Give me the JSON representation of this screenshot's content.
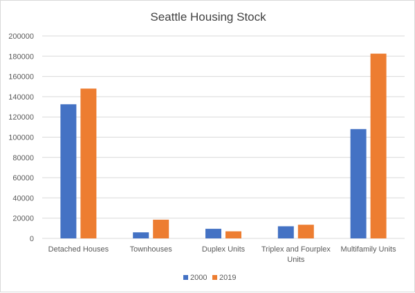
{
  "chart_data": {
    "type": "bar",
    "title": "Seattle Housing Stock",
    "categories": [
      [
        "Detached Houses"
      ],
      [
        "Townhouses"
      ],
      [
        "Duplex Units"
      ],
      [
        "Triplex and Fourplex",
        "Units"
      ],
      [
        "Multifamily Units"
      ]
    ],
    "series": [
      {
        "name": "2000",
        "color": "#4472c4",
        "values": [
          132500,
          6000,
          9500,
          12000,
          108000
        ]
      },
      {
        "name": "2019",
        "color": "#ed7d31",
        "values": [
          148000,
          18500,
          7000,
          13500,
          182500
        ]
      }
    ],
    "ylim": [
      0,
      200000
    ],
    "yticks": [
      "0",
      "20000",
      "40000",
      "60000",
      "80000",
      "100000",
      "120000",
      "140000",
      "160000",
      "180000",
      "200000"
    ],
    "grid": true,
    "legend": "bottom"
  }
}
